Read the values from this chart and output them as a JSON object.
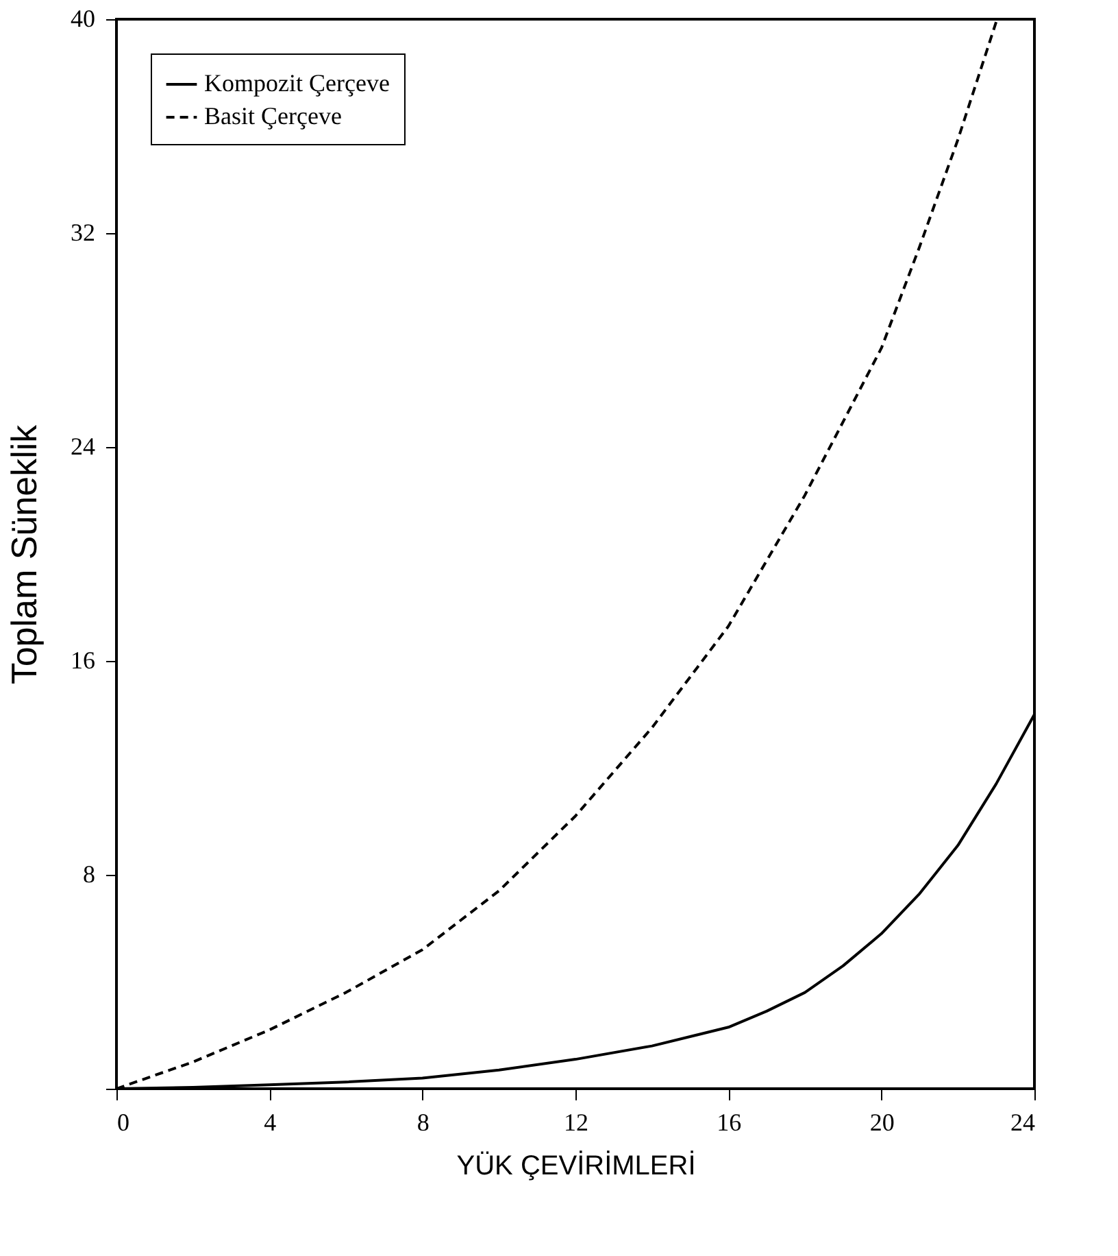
{
  "chart_data": {
    "type": "line",
    "xlabel": "YÜK ÇEVİRİMLERİ",
    "ylabel": "Toplam Süneklik",
    "xlim": [
      0,
      24
    ],
    "ylim": [
      0,
      40
    ],
    "xticks": [
      0,
      4,
      8,
      12,
      16,
      20,
      24
    ],
    "yticks": [
      {
        "value": 0,
        "label": null
      },
      8,
      16,
      24,
      32,
      40
    ],
    "grid": false,
    "legend": "top left",
    "marker": "none",
    "series": [
      {
        "name": "Kompozit Çerçeve",
        "color": "#000000",
        "line_style": "solid",
        "x": [
          0,
          2,
          4,
          6,
          8,
          10,
          12,
          14,
          16,
          17,
          18,
          19,
          20,
          21,
          22,
          23,
          24
        ],
        "values": [
          0,
          0.05,
          0.15,
          0.25,
          0.4,
          0.7,
          1.1,
          1.6,
          2.3,
          2.9,
          3.6,
          4.6,
          5.8,
          7.3,
          9.1,
          11.4,
          14
        ]
      },
      {
        "name": "Basit Çerçeve",
        "color": "#000000",
        "line_style": "dashed",
        "x": [
          0,
          2,
          4,
          6,
          8,
          10,
          12,
          14,
          16,
          18,
          20,
          21,
          22,
          23
        ],
        "values": [
          0,
          1.0,
          2.2,
          3.6,
          5.2,
          7.4,
          10.2,
          13.5,
          17.3,
          22.2,
          27.7,
          31.5,
          35.5,
          39.9
        ]
      }
    ]
  }
}
